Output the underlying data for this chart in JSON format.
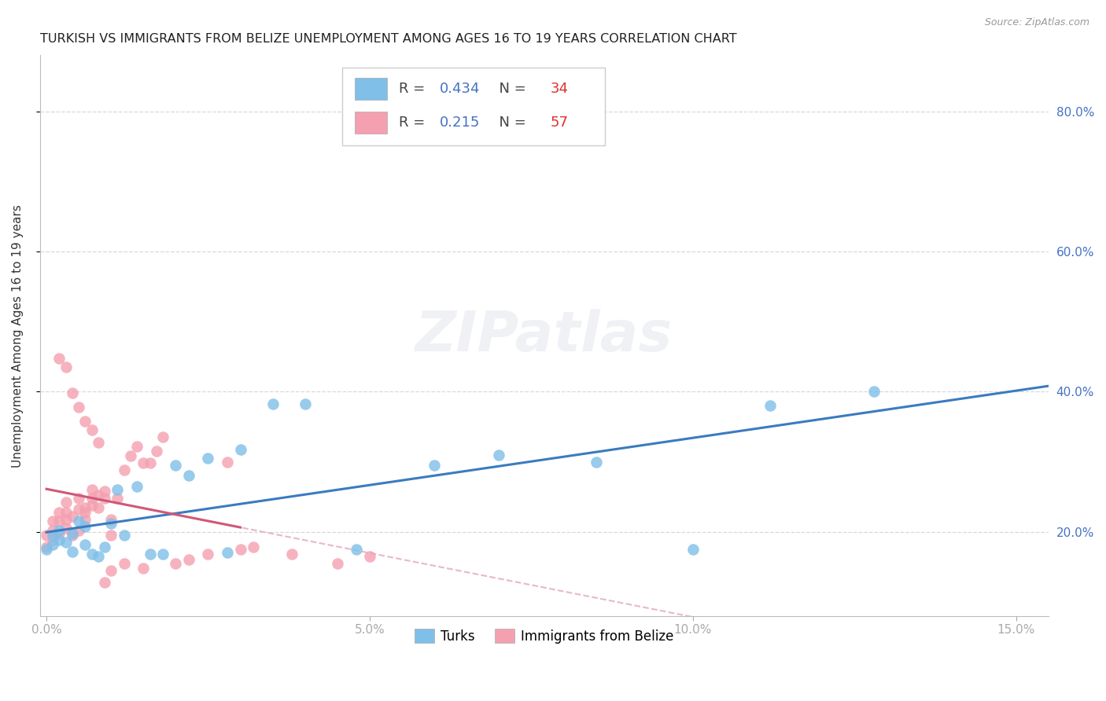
{
  "title": "TURKISH VS IMMIGRANTS FROM BELIZE UNEMPLOYMENT AMONG AGES 16 TO 19 YEARS CORRELATION CHART",
  "source": "Source: ZipAtlas.com",
  "ylabel": "Unemployment Among Ages 16 to 19 years",
  "xlim_min": -0.001,
  "xlim_max": 0.155,
  "ylim_min": 0.08,
  "ylim_max": 0.88,
  "yticks": [
    0.2,
    0.4,
    0.6,
    0.8
  ],
  "ytick_labels": [
    "20.0%",
    "40.0%",
    "60.0%",
    "80.0%"
  ],
  "xticks": [
    0.0,
    0.05,
    0.1,
    0.15
  ],
  "xtick_labels": [
    "0.0%",
    "5.0%",
    "10.0%",
    "15.0%"
  ],
  "turks_R": 0.434,
  "turks_N": 34,
  "belize_R": 0.215,
  "belize_N": 57,
  "blue_scatter_color": "#7fbfe8",
  "blue_line_color": "#3b7bbf",
  "pink_scatter_color": "#f4a0b0",
  "pink_line_color": "#d05878",
  "dashed_color": "#e8b8c8",
  "grid_color": "#d8d8d8",
  "tick_color": "#4472c4",
  "title_color": "#222222",
  "ylabel_color": "#333333",
  "turks_x": [
    0.0,
    0.001,
    0.001,
    0.002,
    0.002,
    0.003,
    0.004,
    0.004,
    0.005,
    0.006,
    0.006,
    0.007,
    0.008,
    0.009,
    0.01,
    0.011,
    0.012,
    0.014,
    0.016,
    0.018,
    0.02,
    0.022,
    0.025,
    0.028,
    0.03,
    0.035,
    0.04,
    0.048,
    0.06,
    0.07,
    0.085,
    0.1,
    0.112,
    0.128
  ],
  "turks_y": [
    0.175,
    0.182,
    0.195,
    0.188,
    0.202,
    0.185,
    0.198,
    0.172,
    0.215,
    0.182,
    0.208,
    0.168,
    0.165,
    0.178,
    0.212,
    0.26,
    0.195,
    0.265,
    0.168,
    0.168,
    0.295,
    0.28,
    0.305,
    0.17,
    0.318,
    0.382,
    0.382,
    0.175,
    0.295,
    0.31,
    0.3,
    0.175,
    0.38,
    0.4
  ],
  "belize_x": [
    0.0,
    0.0,
    0.001,
    0.001,
    0.001,
    0.002,
    0.002,
    0.002,
    0.003,
    0.003,
    0.003,
    0.003,
    0.004,
    0.004,
    0.005,
    0.005,
    0.005,
    0.006,
    0.006,
    0.006,
    0.007,
    0.007,
    0.007,
    0.008,
    0.008,
    0.009,
    0.009,
    0.01,
    0.01,
    0.011,
    0.012,
    0.013,
    0.014,
    0.015,
    0.016,
    0.017,
    0.018,
    0.02,
    0.022,
    0.025,
    0.028,
    0.03,
    0.032,
    0.038,
    0.045,
    0.05,
    0.002,
    0.003,
    0.004,
    0.005,
    0.006,
    0.007,
    0.008,
    0.009,
    0.01,
    0.012,
    0.015
  ],
  "belize_y": [
    0.178,
    0.195,
    0.188,
    0.202,
    0.215,
    0.198,
    0.215,
    0.228,
    0.205,
    0.218,
    0.228,
    0.242,
    0.195,
    0.222,
    0.232,
    0.202,
    0.248,
    0.228,
    0.218,
    0.235,
    0.238,
    0.248,
    0.26,
    0.252,
    0.235,
    0.258,
    0.248,
    0.195,
    0.218,
    0.248,
    0.288,
    0.308,
    0.322,
    0.298,
    0.298,
    0.315,
    0.335,
    0.155,
    0.16,
    0.168,
    0.3,
    0.175,
    0.178,
    0.168,
    0.155,
    0.165,
    0.448,
    0.435,
    0.398,
    0.378,
    0.358,
    0.345,
    0.328,
    0.128,
    0.145,
    0.155,
    0.148
  ]
}
